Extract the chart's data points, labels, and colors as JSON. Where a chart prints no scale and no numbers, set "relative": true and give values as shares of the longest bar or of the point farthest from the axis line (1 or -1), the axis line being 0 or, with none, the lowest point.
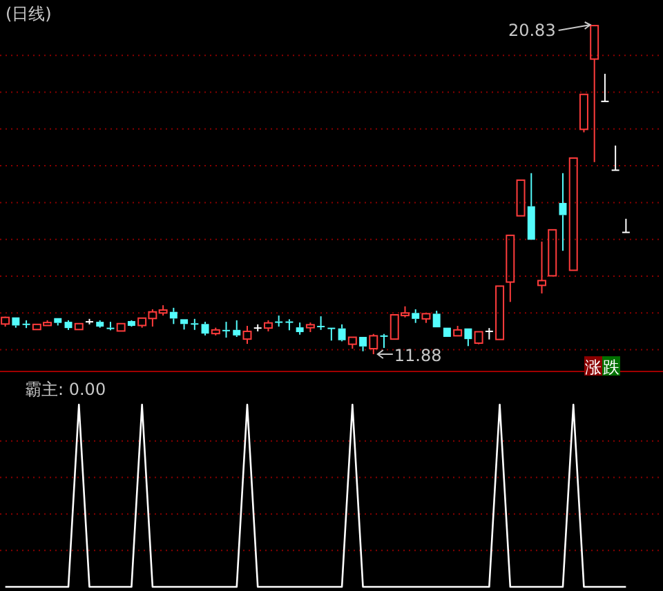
{
  "chart_data": [
    {
      "type": "candlestick",
      "title": "(日线)",
      "categories": [
        null,
        null,
        null,
        null,
        null,
        null,
        null,
        null,
        null,
        null,
        null,
        null,
        null,
        null,
        null,
        null,
        null,
        null,
        null,
        null,
        null,
        null,
        null,
        null,
        null,
        null,
        null,
        null,
        null,
        null,
        null,
        null,
        null,
        null,
        null,
        null,
        null,
        null,
        null,
        null,
        null,
        null,
        null,
        null,
        null,
        null,
        null,
        null,
        null,
        null,
        null,
        null,
        null,
        null,
        null,
        null,
        null,
        null,
        null,
        null
      ],
      "ohlc": [
        [
          12.7,
          12.9,
          12.63,
          12.88
        ],
        [
          12.88,
          12.88,
          12.6,
          12.66
        ],
        [
          12.71,
          12.8,
          12.59,
          12.69
        ],
        [
          12.55,
          12.69,
          12.55,
          12.69
        ],
        [
          12.66,
          12.8,
          12.66,
          12.74
        ],
        [
          12.86,
          12.86,
          12.66,
          12.73
        ],
        [
          12.76,
          12.8,
          12.54,
          12.59
        ],
        [
          12.55,
          12.71,
          12.55,
          12.71
        ],
        [
          12.76,
          12.84,
          12.69,
          12.76
        ],
        [
          12.76,
          12.8,
          12.6,
          12.63
        ],
        [
          12.6,
          12.76,
          12.53,
          12.58
        ],
        [
          12.51,
          12.71,
          12.51,
          12.71
        ],
        [
          12.78,
          12.8,
          12.63,
          12.65
        ],
        [
          12.66,
          12.86,
          12.6,
          12.86
        ],
        [
          12.85,
          13.1,
          12.63,
          13.03
        ],
        [
          13.0,
          13.21,
          12.93,
          13.08
        ],
        [
          13.03,
          13.14,
          12.7,
          12.85
        ],
        [
          12.83,
          12.83,
          12.55,
          12.7
        ],
        [
          12.72,
          12.84,
          12.54,
          12.7
        ],
        [
          12.7,
          12.76,
          12.39,
          12.44
        ],
        [
          12.44,
          12.6,
          12.39,
          12.54
        ],
        [
          12.54,
          12.76,
          12.33,
          12.52
        ],
        [
          12.54,
          12.8,
          12.35,
          12.39
        ],
        [
          12.29,
          12.65,
          12.16,
          12.5
        ],
        [
          12.59,
          12.69,
          12.5,
          12.59
        ],
        [
          12.59,
          12.8,
          12.5,
          12.73
        ],
        [
          12.77,
          12.93,
          12.63,
          12.75
        ],
        [
          12.77,
          12.83,
          12.53,
          12.75
        ],
        [
          12.61,
          12.74,
          12.41,
          12.48
        ],
        [
          12.6,
          12.74,
          12.48,
          12.68
        ],
        [
          12.65,
          12.91,
          12.54,
          12.63
        ],
        [
          12.6,
          12.6,
          12.25,
          12.58
        ],
        [
          12.58,
          12.69,
          12.23,
          12.26
        ],
        [
          12.15,
          12.34,
          12.03,
          12.34
        ],
        [
          12.35,
          12.35,
          11.96,
          12.09
        ],
        [
          12.03,
          12.43,
          11.88,
          12.38
        ],
        [
          12.39,
          12.43,
          12.05,
          12.37
        ],
        [
          12.29,
          12.95,
          12.29,
          12.95
        ],
        [
          12.93,
          13.18,
          12.88,
          13.0
        ],
        [
          13.0,
          13.1,
          12.73,
          12.84
        ],
        [
          12.84,
          12.98,
          12.73,
          12.98
        ],
        [
          12.98,
          13.06,
          12.61,
          12.61
        ],
        [
          12.6,
          12.6,
          12.35,
          12.35
        ],
        [
          12.38,
          12.65,
          12.38,
          12.54
        ],
        [
          12.58,
          12.58,
          12.1,
          12.29
        ],
        [
          12.18,
          12.49,
          12.15,
          12.49
        ],
        [
          12.5,
          12.59,
          12.28,
          12.5
        ],
        [
          12.28,
          13.73,
          12.28,
          13.73
        ],
        [
          13.84,
          15.11,
          13.3,
          15.11
        ],
        [
          15.64,
          16.61,
          15.64,
          16.61
        ],
        [
          15.9,
          16.8,
          14.99,
          14.99
        ],
        [
          13.75,
          14.94,
          13.53,
          13.88
        ],
        [
          14.01,
          15.26,
          14.01,
          15.26
        ],
        [
          15.99,
          16.8,
          14.69,
          15.66
        ],
        [
          14.16,
          17.21,
          14.16,
          17.21
        ],
        [
          17.99,
          18.94,
          17.91,
          18.94
        ],
        [
          19.9,
          20.83,
          17.1,
          20.81
        ],
        [
          18.75,
          19.5,
          18.75,
          18.75
        ],
        [
          16.88,
          17.55,
          16.88,
          16.88
        ],
        [
          15.19,
          15.56,
          15.19,
          15.19
        ]
      ],
      "colors": [
        "#ff3c3c",
        "#54fcfc",
        "#54fcfc",
        "#ff3c3c",
        "#ff3c3c",
        "#54fcfc",
        "#54fcfc",
        "#ff3c3c",
        "#ffffff",
        "#54fcfc",
        "#54fcfc",
        "#ff3c3c",
        "#54fcfc",
        "#ff3c3c",
        "#ff3c3c",
        "#ff3c3c",
        "#54fcfc",
        "#54fcfc",
        "#54fcfc",
        "#54fcfc",
        "#ff3c3c",
        "#54fcfc",
        "#54fcfc",
        "#ff3c3c",
        "#ffffff",
        "#ff3c3c",
        "#54fcfc",
        "#54fcfc",
        "#54fcfc",
        "#ff3c3c",
        "#54fcfc",
        "#54fcfc",
        "#54fcfc",
        "#ff3c3c",
        "#54fcfc",
        "#ff3c3c",
        "#54fcfc",
        "#ff3c3c",
        "#ff3c3c",
        "#54fcfc",
        "#ff3c3c",
        "#54fcfc",
        "#54fcfc",
        "#ff3c3c",
        "#54fcfc",
        "#ff3c3c",
        "#ffffff",
        "#ff3c3c",
        "#ff3c3c",
        "#ff3c3c",
        "#54fcfc",
        "#ff3c3c",
        "#ff3c3c",
        "#54fcfc",
        "#ff3c3c",
        "#ff3c3c",
        "#ff3c3c",
        "#ffffff",
        "#ffffff",
        "#ffffff"
      ],
      "yticks": [
        {
          "value": 12,
          "label": null
        },
        {
          "value": 13,
          "label": null
        },
        {
          "value": 14,
          "label": null
        },
        {
          "value": 15,
          "label": null
        },
        {
          "value": 16,
          "label": null
        },
        {
          "value": 17,
          "label": null
        },
        {
          "value": 18,
          "label": null
        },
        {
          "value": 19,
          "label": null
        },
        {
          "value": 20,
          "label": null
        }
      ],
      "grid": "y",
      "annotations": [
        "20.83",
        "11.88",
        "涨",
        "跌"
      ]
    },
    {
      "type": "line",
      "title": "霸主: 0.00",
      "relative": true,
      "color": "#ffffff",
      "ref_lines": [
        {
          "axis": "y",
          "value": 0.2,
          "color": "#8b0000",
          "line_style": "dotted"
        },
        {
          "axis": "y",
          "value": 0.4,
          "color": "#8b0000",
          "line_style": "dotted"
        },
        {
          "axis": "y",
          "value": 0.6,
          "color": "#8b0000",
          "line_style": "dotted"
        },
        {
          "axis": "y",
          "value": 0.8,
          "color": "#8b0000",
          "line_style": "dotted"
        }
      ],
      "categories": [
        null,
        null,
        null,
        null,
        null,
        null,
        null,
        null,
        null,
        null,
        null,
        null,
        null,
        null,
        null,
        null,
        null,
        null,
        null,
        null,
        null,
        null,
        null,
        null,
        null,
        null,
        null,
        null,
        null,
        null,
        null,
        null,
        null,
        null,
        null,
        null,
        null,
        null,
        null,
        null,
        null,
        null,
        null,
        null,
        null,
        null,
        null,
        null,
        null,
        null,
        null,
        null,
        null,
        null,
        null,
        null,
        null,
        null,
        null,
        null
      ],
      "values": [
        0,
        0,
        0,
        0,
        0,
        0,
        0,
        1,
        0,
        0,
        0,
        0,
        0,
        1,
        0,
        0,
        0,
        0,
        0,
        0,
        0,
        0,
        0,
        1,
        0,
        0,
        0,
        0,
        0,
        0,
        0,
        0,
        0,
        1,
        0,
        0,
        0,
        0,
        0,
        0,
        0,
        0,
        0,
        0,
        0,
        0,
        0,
        1,
        0,
        0,
        0,
        0,
        0,
        0,
        1,
        0,
        0,
        0,
        0,
        0
      ]
    }
  ]
}
